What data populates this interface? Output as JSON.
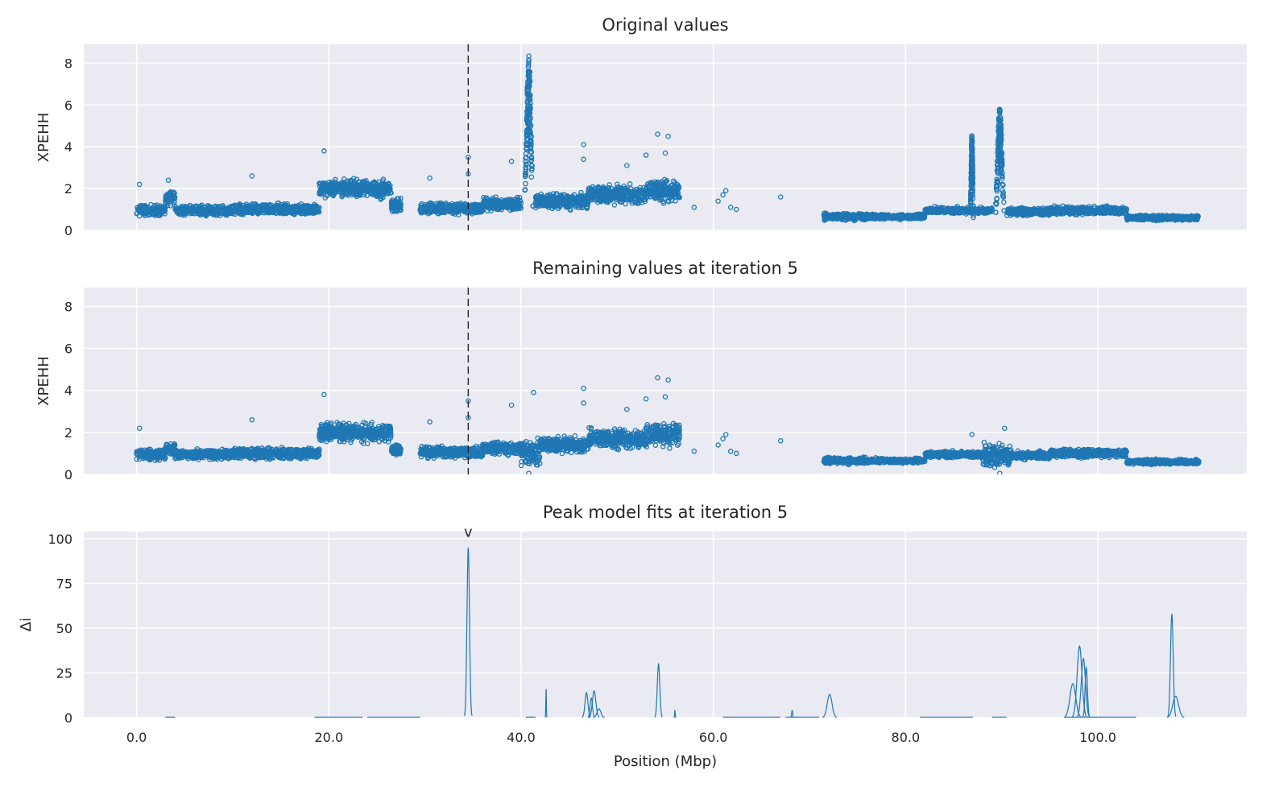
{
  "chart_data": [
    {
      "type": "scatter",
      "title": "Original values",
      "xlabel": "",
      "ylabel": "XPEHH",
      "xlim": [
        -5.5,
        115.5
      ],
      "ylim": [
        0,
        8.9
      ],
      "xticks": [
        0,
        20,
        40,
        60,
        80,
        100
      ],
      "yticks": [
        0,
        2,
        4,
        6,
        8
      ],
      "ytick_labels": [
        "0",
        "2",
        "4",
        "6",
        "8"
      ],
      "vline_x": 34.5,
      "grid": true,
      "marker": "open-circle",
      "color": "#1f77b4",
      "background": "#eaeaf2",
      "segments": [
        {
          "x": [
            0,
            3
          ],
          "base": 0.95,
          "spread": 0.35
        },
        {
          "x": [
            3,
            4
          ],
          "base": 1.6,
          "spread": 0.5
        },
        {
          "x": [
            4,
            10
          ],
          "base": 0.95,
          "spread": 0.3
        },
        {
          "x": [
            10,
            19
          ],
          "base": 1.0,
          "spread": 0.35
        },
        {
          "x": [
            19,
            26.5
          ],
          "base": 2.0,
          "spread": 0.6
        },
        {
          "x": [
            26.5,
            27.5
          ],
          "base": 1.2,
          "spread": 0.4
        },
        {
          "x": [
            29.5,
            36
          ],
          "base": 1.05,
          "spread": 0.35
        },
        {
          "x": [
            36,
            40
          ],
          "base": 1.25,
          "spread": 0.4
        },
        {
          "x": [
            41.5,
            47
          ],
          "base": 1.4,
          "spread": 0.5
        },
        {
          "x": [
            47,
            53
          ],
          "base": 1.7,
          "spread": 0.6
        },
        {
          "x": [
            53,
            56.5
          ],
          "base": 1.9,
          "spread": 0.7
        },
        {
          "x": [
            71.5,
            76
          ],
          "base": 0.65,
          "spread": 0.2
        },
        {
          "x": [
            76,
            82
          ],
          "base": 0.65,
          "spread": 0.15
        },
        {
          "x": [
            82,
            89
          ],
          "base": 0.95,
          "spread": 0.2
        },
        {
          "x": [
            90.5,
            95
          ],
          "base": 0.9,
          "spread": 0.25
        },
        {
          "x": [
            95,
            103
          ],
          "base": 0.95,
          "spread": 0.25
        },
        {
          "x": [
            103,
            110.5
          ],
          "base": 0.6,
          "spread": 0.15
        }
      ],
      "peaks": [
        {
          "x": 40.8,
          "width": 0.55,
          "height": 8.5
        },
        {
          "x": 89.8,
          "width": 0.55,
          "height": 5.9
        },
        {
          "x": 86.9,
          "width": 0.2,
          "height": 4.6
        }
      ],
      "isolated_points": [
        [
          0.3,
          2.2
        ],
        [
          3.3,
          2.4
        ],
        [
          12.0,
          2.6
        ],
        [
          19.5,
          3.8
        ],
        [
          30.5,
          2.5
        ],
        [
          34.5,
          3.5
        ],
        [
          34.5,
          2.7
        ],
        [
          39.0,
          3.3
        ],
        [
          46.5,
          4.1
        ],
        [
          46.5,
          3.4
        ],
        [
          51.0,
          3.1
        ],
        [
          53.0,
          3.6
        ],
        [
          54.2,
          4.6
        ],
        [
          55.3,
          4.5
        ],
        [
          55.0,
          3.7
        ],
        [
          58.0,
          1.1
        ],
        [
          60.5,
          1.4
        ],
        [
          61.0,
          1.7
        ],
        [
          61.3,
          1.9
        ],
        [
          61.8,
          1.1
        ],
        [
          62.4,
          1.0
        ],
        [
          67.0,
          1.6
        ]
      ]
    },
    {
      "type": "scatter",
      "title": "Remaining values at iteration 5",
      "xlabel": "",
      "ylabel": "XPEHH",
      "xlim": [
        -5.5,
        115.5
      ],
      "ylim": [
        0,
        8.9
      ],
      "xticks": [
        0,
        20,
        40,
        60,
        80,
        100
      ],
      "yticks": [
        0,
        2,
        4,
        6,
        8
      ],
      "ytick_labels": [
        "0",
        "2",
        "4",
        "6",
        "8"
      ],
      "vline_x": 34.5,
      "grid": true,
      "marker": "open-circle",
      "color": "#1f77b4",
      "background": "#eaeaf2",
      "segments": [
        {
          "x": [
            0,
            3
          ],
          "base": 0.95,
          "spread": 0.35
        },
        {
          "x": [
            3,
            4
          ],
          "base": 1.2,
          "spread": 0.4
        },
        {
          "x": [
            4,
            10
          ],
          "base": 0.95,
          "spread": 0.3
        },
        {
          "x": [
            10,
            19
          ],
          "base": 1.0,
          "spread": 0.35
        },
        {
          "x": [
            19,
            26.5
          ],
          "base": 2.0,
          "spread": 0.6
        },
        {
          "x": [
            26.5,
            27.5
          ],
          "base": 1.2,
          "spread": 0.4
        },
        {
          "x": [
            29.5,
            36
          ],
          "base": 1.05,
          "spread": 0.35
        },
        {
          "x": [
            36,
            40
          ],
          "base": 1.25,
          "spread": 0.4
        },
        {
          "x": [
            40,
            42
          ],
          "base": 1.0,
          "spread": 0.9
        },
        {
          "x": [
            42,
            47
          ],
          "base": 1.4,
          "spread": 0.5
        },
        {
          "x": [
            47,
            53
          ],
          "base": 1.7,
          "spread": 0.6
        },
        {
          "x": [
            53,
            56.5
          ],
          "base": 1.9,
          "spread": 0.7
        },
        {
          "x": [
            71.5,
            76
          ],
          "base": 0.65,
          "spread": 0.2
        },
        {
          "x": [
            76,
            82
          ],
          "base": 0.65,
          "spread": 0.15
        },
        {
          "x": [
            82,
            88
          ],
          "base": 0.95,
          "spread": 0.2
        },
        {
          "x": [
            88,
            91
          ],
          "base": 0.9,
          "spread": 0.7
        },
        {
          "x": [
            91,
            95
          ],
          "base": 0.9,
          "spread": 0.25
        },
        {
          "x": [
            95,
            103
          ],
          "base": 1.0,
          "spread": 0.25
        },
        {
          "x": [
            103,
            110.5
          ],
          "base": 0.6,
          "spread": 0.15
        }
      ],
      "peaks": [],
      "isolated_points": [
        [
          0.3,
          2.2
        ],
        [
          12.0,
          2.6
        ],
        [
          19.5,
          3.8
        ],
        [
          30.5,
          2.5
        ],
        [
          34.5,
          3.5
        ],
        [
          34.5,
          2.7
        ],
        [
          39.0,
          3.3
        ],
        [
          41.3,
          3.9
        ],
        [
          46.5,
          4.1
        ],
        [
          46.5,
          3.4
        ],
        [
          51.0,
          3.1
        ],
        [
          53.0,
          3.6
        ],
        [
          54.2,
          4.6
        ],
        [
          55.3,
          4.5
        ],
        [
          55.0,
          3.7
        ],
        [
          58.0,
          1.1
        ],
        [
          60.5,
          1.4
        ],
        [
          61.0,
          1.7
        ],
        [
          61.3,
          1.9
        ],
        [
          61.8,
          1.1
        ],
        [
          62.4,
          1.0
        ],
        [
          67.0,
          1.6
        ],
        [
          86.9,
          1.9
        ],
        [
          90.3,
          2.2
        ],
        [
          40.8,
          0.05
        ],
        [
          89.8,
          0.05
        ]
      ]
    },
    {
      "type": "line",
      "title": "Peak model fits at iteration 5",
      "xlabel": "Position (Mbp)",
      "ylabel": "Δi",
      "xlim": [
        -5.5,
        115.5
      ],
      "ylim": [
        0,
        104
      ],
      "xticks": [
        0,
        20,
        40,
        60,
        80,
        100
      ],
      "xtick_labels": [
        "0.0",
        "20.0",
        "40.0",
        "60.0",
        "80.0",
        "100.0"
      ],
      "yticks": [
        0,
        25,
        50,
        75,
        100
      ],
      "ytick_labels": [
        "0",
        "25",
        "50",
        "75",
        "100"
      ],
      "grid": true,
      "color": "#1f77b4",
      "background": "#eaeaf2",
      "marker_annotation": {
        "x": 34.5,
        "y": 101,
        "text": "v"
      },
      "baseline_segments": [
        [
          3,
          4
        ],
        [
          18.5,
          23.5
        ],
        [
          24,
          29.5
        ],
        [
          40.5,
          41.5
        ],
        [
          61,
          67
        ],
        [
          67.5,
          71
        ],
        [
          81.5,
          87
        ],
        [
          89,
          90.5
        ],
        [
          96.5,
          104
        ]
      ],
      "peaks": [
        {
          "x": 34.5,
          "height": 95,
          "width": 0.13
        },
        {
          "x": 42.6,
          "height": 16,
          "width": 0.03
        },
        {
          "x": 46.8,
          "height": 14,
          "width": 0.15
        },
        {
          "x": 47.3,
          "height": 11,
          "width": 0.12
        },
        {
          "x": 47.6,
          "height": 15,
          "width": 0.18
        },
        {
          "x": 48.1,
          "height": 5,
          "width": 0.2
        },
        {
          "x": 54.3,
          "height": 30,
          "width": 0.13
        },
        {
          "x": 56.0,
          "height": 4,
          "width": 0.03
        },
        {
          "x": 68.2,
          "height": 4,
          "width": 0.05
        },
        {
          "x": 72.1,
          "height": 13,
          "width": 0.25
        },
        {
          "x": 97.4,
          "height": 19,
          "width": 0.3
        },
        {
          "x": 98.1,
          "height": 40,
          "width": 0.25
        },
        {
          "x": 98.5,
          "height": 33,
          "width": 0.22
        },
        {
          "x": 98.8,
          "height": 28,
          "width": 0.12
        },
        {
          "x": 107.7,
          "height": 58,
          "width": 0.14
        },
        {
          "x": 108.1,
          "height": 12,
          "width": 0.3
        }
      ]
    }
  ]
}
